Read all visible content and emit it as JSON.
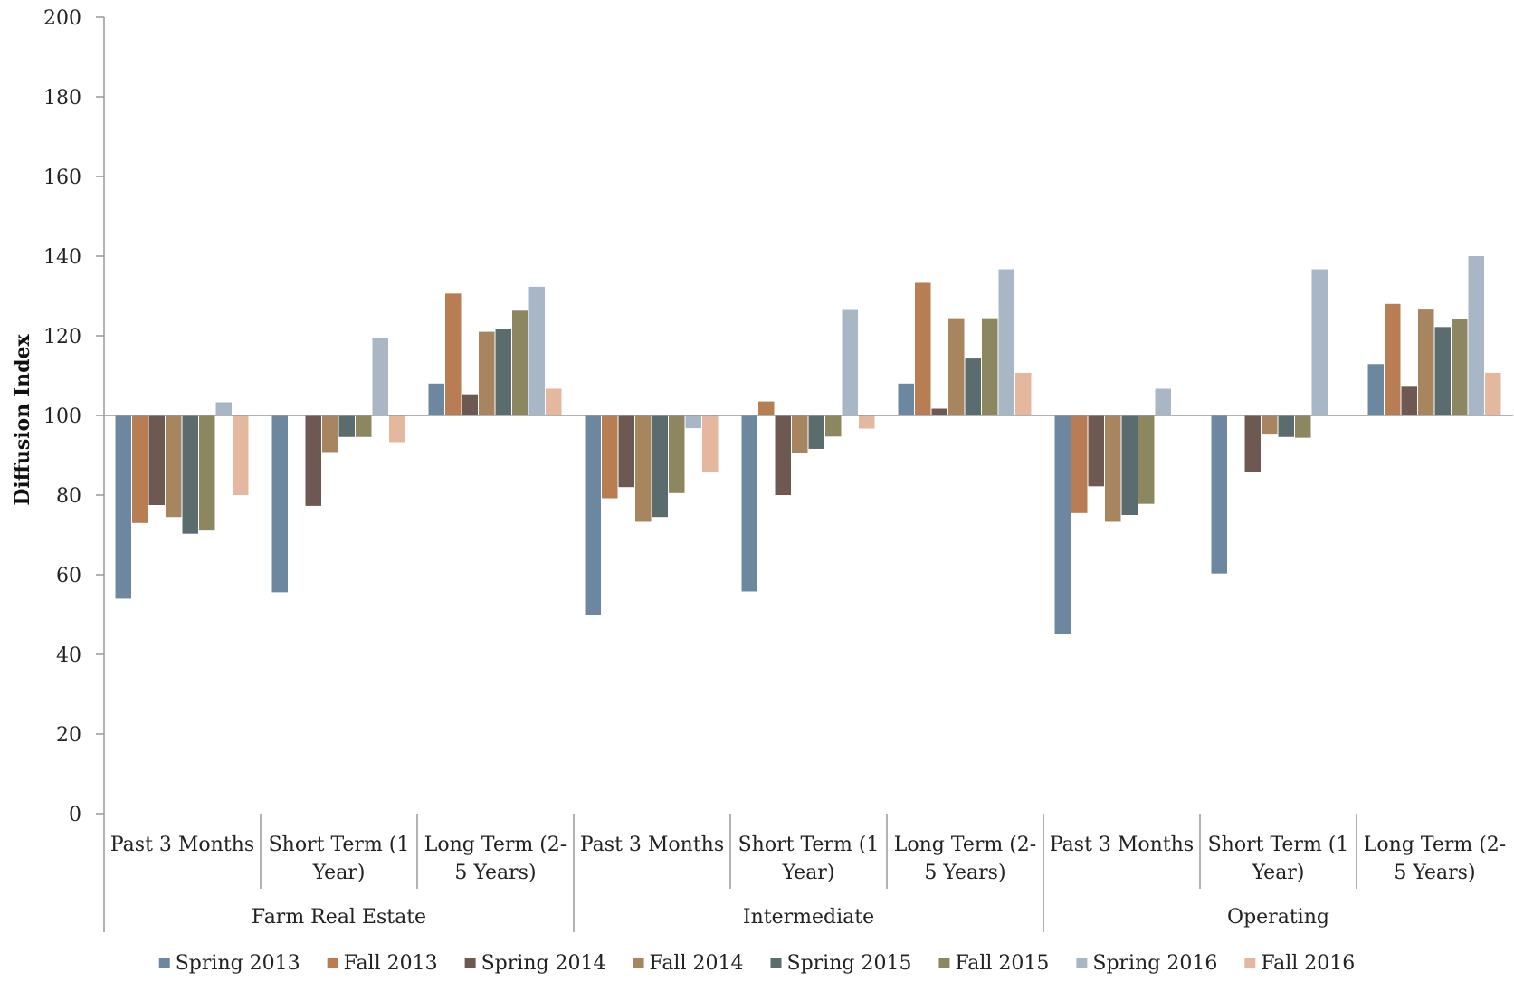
{
  "chart_data": {
    "type": "bar",
    "title": "",
    "xlabel": "",
    "ylabel": "Diffusion Index",
    "ylim": [
      0,
      200
    ],
    "ytick_step": 20,
    "baseline": 100,
    "grid": false,
    "legend_position": "bottom",
    "groups": [
      "Farm Real Estate",
      "Intermediate",
      "Operating"
    ],
    "subcategories": [
      [
        "Past 3 Months"
      ],
      [
        "Short Term (1",
        "Year)"
      ],
      [
        "Long Term (2-",
        "5 Years)"
      ]
    ],
    "series": [
      {
        "name": "Spring 2013",
        "color": "#6e87a0",
        "values": [
          54,
          55.6,
          108,
          50,
          55.8,
          108,
          45.2,
          60.3,
          112.9
        ]
      },
      {
        "name": "Fall 2013",
        "color": "#b87d52",
        "values": [
          73,
          100,
          130.6,
          79.2,
          103.5,
          133.3,
          75.5,
          100,
          128
        ]
      },
      {
        "name": "Spring 2014",
        "color": "#6d5852",
        "values": [
          77.5,
          77.3,
          105.3,
          82,
          80,
          101.7,
          82.2,
          85.7,
          107.2
        ]
      },
      {
        "name": "Fall 2014",
        "color": "#a6855f",
        "values": [
          74.5,
          90.8,
          121,
          73.3,
          90.5,
          124.4,
          73.3,
          95.2,
          126.8
        ]
      },
      {
        "name": "Spring 2015",
        "color": "#5b6c6f",
        "values": [
          70.3,
          94.6,
          121.6,
          74.5,
          91.6,
          114.3,
          75,
          94.6,
          122.2
        ]
      },
      {
        "name": "Fall 2015",
        "color": "#8c8760",
        "values": [
          71.1,
          94.6,
          126.3,
          80.5,
          94.7,
          124.4,
          77.8,
          94.4,
          124.3
        ]
      },
      {
        "name": "Spring 2016",
        "color": "#a9b6c5",
        "values": [
          103.3,
          119.4,
          132.3,
          96.8,
          126.7,
          136.7,
          106.7,
          136.7,
          140
        ]
      },
      {
        "name": "Fall 2016",
        "color": "#e3b89f",
        "values": [
          80,
          93.3,
          106.7,
          85.7,
          96.7,
          110.7,
          100,
          100,
          110.7
        ]
      }
    ]
  }
}
